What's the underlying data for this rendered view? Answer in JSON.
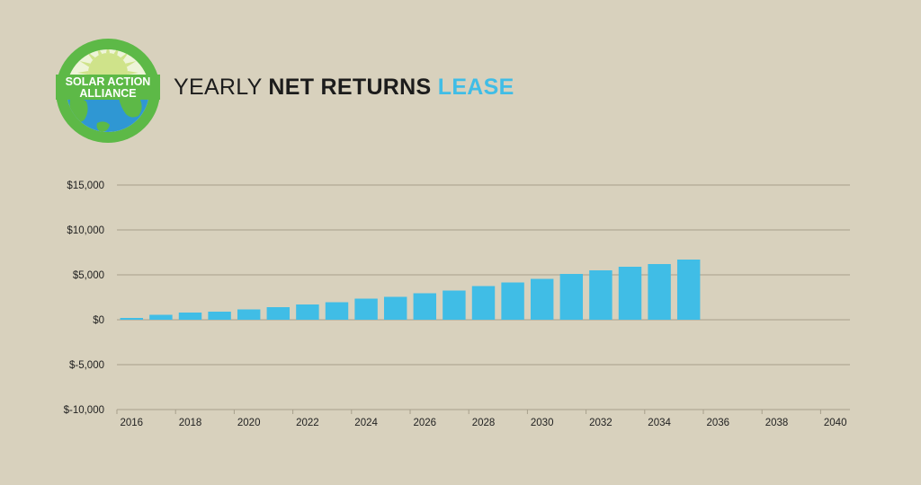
{
  "colors": {
    "background": "#d8d1bd",
    "bar": "#40bde6",
    "accent": "#40bde6",
    "gridline": "#a7a08c",
    "logo_green": "#5db947",
    "logo_blue": "#2f97d3",
    "logo_sun": "#cfe38a"
  },
  "logo": {
    "line1": "SOLAR ACTION",
    "line2": "ALLIANCE",
    "icon": "globe-sun-logo"
  },
  "heading": {
    "part1": "YEARLY",
    "part2": "NET RETURNS",
    "part3": "LEASE"
  },
  "chart_data": {
    "type": "bar",
    "title": "YEARLY NET RETURNS LEASE",
    "xlabel": "",
    "ylabel": "",
    "x_ticks": [
      "2016",
      "2018",
      "2020",
      "2022",
      "2024",
      "2026",
      "2028",
      "2030",
      "2032",
      "2034",
      "2036",
      "2038",
      "2040"
    ],
    "y_ticks": [
      "$15,000",
      "$10,000",
      "$5,000",
      "$0",
      "$-5,000",
      "$-10,000"
    ],
    "y_tick_values": [
      15000,
      10000,
      5000,
      0,
      -5000,
      -10000
    ],
    "ylim": [
      -10000,
      15000
    ],
    "xlim": [
      2016,
      2040
    ],
    "grid": true,
    "years": [
      2016,
      2017,
      2018,
      2019,
      2020,
      2021,
      2022,
      2023,
      2024,
      2025,
      2026,
      2027,
      2028,
      2029,
      2030,
      2031,
      2032,
      2033,
      2034,
      2035
    ],
    "values": [
      200,
      550,
      800,
      900,
      1150,
      1400,
      1700,
      1950,
      2350,
      2550,
      2950,
      3250,
      3750,
      4150,
      4550,
      5100,
      5500,
      5900,
      6200,
      6700
    ]
  }
}
